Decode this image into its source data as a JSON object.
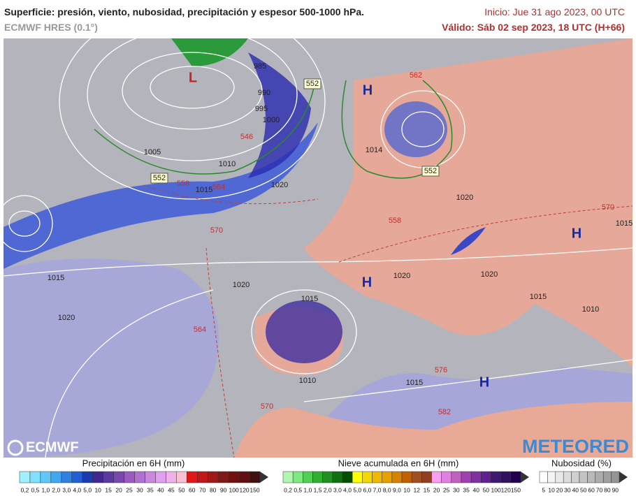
{
  "header": {
    "title": "Superficie: presión, viento, nubosidad, precipitación y espesor 500-1000 hPa.",
    "subtitle": "ECMWF HRES (0.1°)",
    "init": "Inicio: Jue 31 ago 2023, 00 UTC",
    "valid": "Válido: Sáb 02 sep 2023, 18 UTC (H+66)"
  },
  "map": {
    "isobar_labels": [
      "985",
      "990",
      "995",
      "1000",
      "1005",
      "1010",
      "1015",
      "1020",
      "1014",
      "1015",
      "1020",
      "1020",
      "1015",
      "1020",
      "1020",
      "1015",
      "1010",
      "1015",
      "1010",
      "1020",
      "1015"
    ],
    "thickness_labels": [
      "558",
      "564",
      "570",
      "564",
      "570",
      "576",
      "582",
      "558",
      "570",
      "546",
      "562"
    ],
    "thickness_boxes": [
      "552",
      "552",
      "552"
    ],
    "low_centers": [
      "L"
    ],
    "high_centers": [
      "H",
      "H",
      "H",
      "H"
    ],
    "logos": [
      "ECMWF",
      "METEORED"
    ]
  },
  "legends": {
    "precipitation": {
      "title": "Precipitación en 6H (mm)",
      "labels": [
        "0,2",
        "0,5",
        "1,0",
        "2,0",
        "3,0",
        "4,0",
        "5,0",
        "10",
        "15",
        "20",
        "25",
        "30",
        "35",
        "40",
        "45",
        "50",
        "60",
        "70",
        "80",
        "90",
        "100",
        "120",
        "150"
      ]
    },
    "snow": {
      "title": "Nieve acumulada en 6H (mm)",
      "labels": [
        "0,2",
        "0,5",
        "1,0",
        "1,5",
        "2,0",
        "3,0",
        "4,0",
        "5,0",
        "6,0",
        "7,0",
        "8,0",
        "9,0",
        "10",
        "12",
        "15",
        "20",
        "25",
        "30",
        "35",
        "40",
        "50",
        "100",
        "120",
        "150"
      ]
    },
    "cloud": {
      "title": "Nubosidad (%)",
      "labels": [
        "5",
        "10",
        "20",
        "30",
        "40",
        "50",
        "60",
        "70",
        "80",
        "90"
      ]
    }
  }
}
